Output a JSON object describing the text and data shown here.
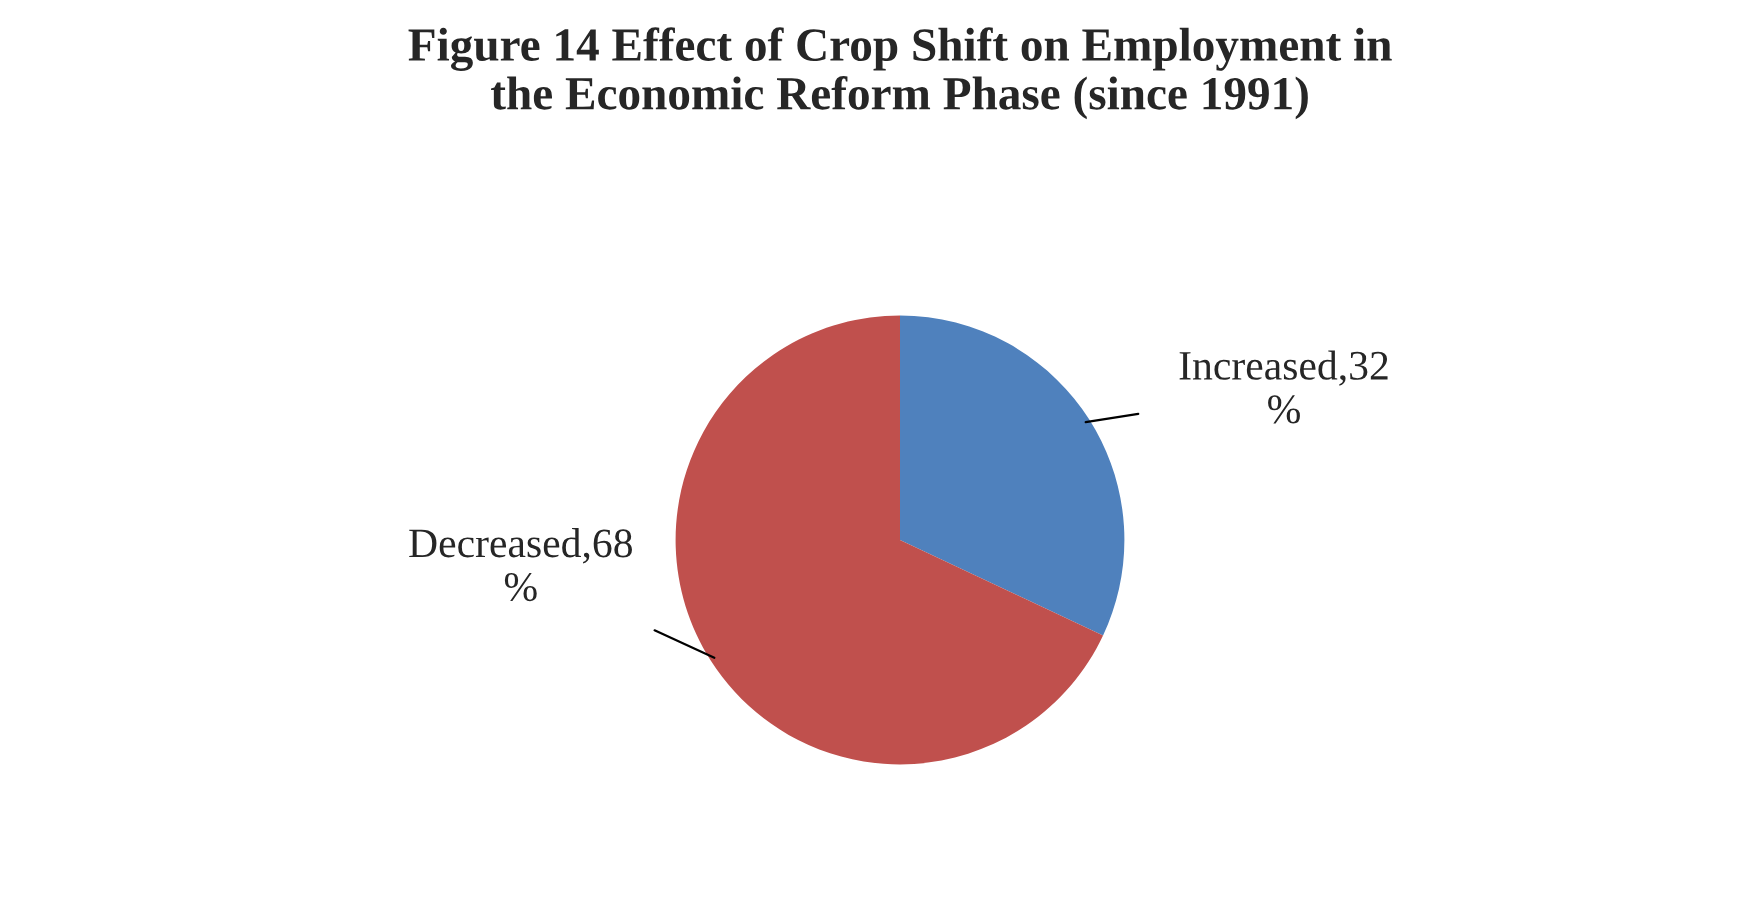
{
  "chart_data": {
    "type": "pie",
    "title": "Figure 14 Effect of Crop Shift on Employment in\nthe Economic Reform Phase (since 1991)",
    "categories": [
      "Increased",
      "Decreased"
    ],
    "values": [
      32,
      68
    ],
    "colors": [
      "#4f81bd",
      "#c0504d"
    ],
    "value_labels": [
      "32\n%",
      "68\n%"
    ]
  }
}
